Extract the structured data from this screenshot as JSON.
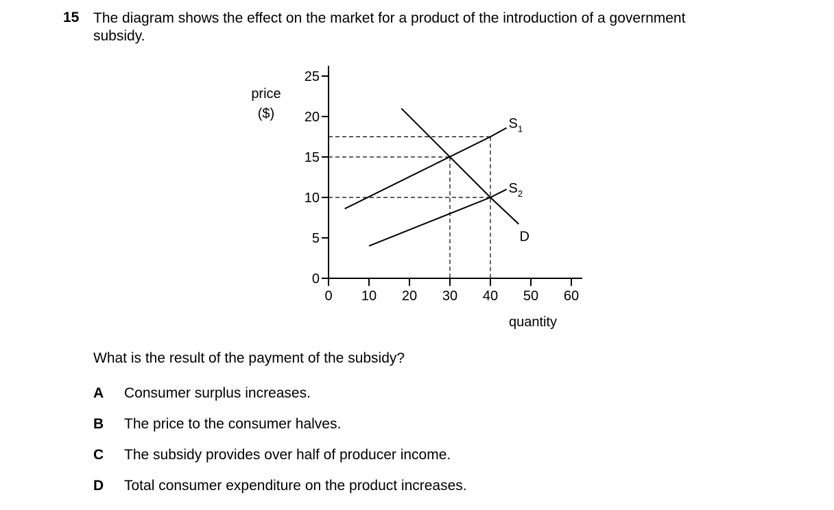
{
  "question": {
    "number": "15",
    "stem_lines": [
      "The diagram shows the effect on the market for a product of the introduction of a government",
      "subsidy."
    ],
    "prompt": "What is the result of the payment of the subsidy?",
    "options": [
      {
        "letter": "A",
        "text": "Consumer surplus increases."
      },
      {
        "letter": "B",
        "text": "The price to the consumer halves."
      },
      {
        "letter": "C",
        "text": "The subsidy provides over half of producer income."
      },
      {
        "letter": "D",
        "text": "Total consumer expenditure on the product increases."
      }
    ]
  },
  "chart_data": {
    "type": "line",
    "ylabel_lines": [
      "price",
      "($)"
    ],
    "xlabel": "quantity",
    "xlim": [
      0,
      60
    ],
    "ylim": [
      0,
      25
    ],
    "x_ticks": [
      0,
      10,
      20,
      30,
      40,
      50,
      60
    ],
    "y_ticks": [
      0,
      5,
      10,
      15,
      20,
      25
    ],
    "x_tick_labels": [
      "0",
      "10",
      "20",
      "30",
      "40",
      "50",
      "60"
    ],
    "y_tick_labels": [
      "0",
      "5",
      "10",
      "15",
      "20",
      "25"
    ],
    "series": [
      {
        "name": "S",
        "subscript": "1",
        "points": [
          [
            4,
            8.6
          ],
          [
            40,
            17.5
          ],
          [
            44,
            18.6
          ]
        ]
      },
      {
        "name": "S",
        "subscript": "2",
        "points": [
          [
            10,
            4
          ],
          [
            40,
            10
          ],
          [
            44,
            11
          ]
        ]
      },
      {
        "name": "D",
        "subscript": "",
        "points": [
          [
            18,
            21
          ],
          [
            30,
            15
          ],
          [
            40,
            10
          ],
          [
            47,
            6.7
          ]
        ]
      }
    ],
    "guides": {
      "horizontal": [
        17.5,
        15,
        10
      ],
      "vertical": [
        30,
        40
      ]
    },
    "equilibria": [
      [
        30,
        15
      ],
      [
        40,
        10
      ]
    ],
    "grid": false,
    "legend": "none"
  }
}
